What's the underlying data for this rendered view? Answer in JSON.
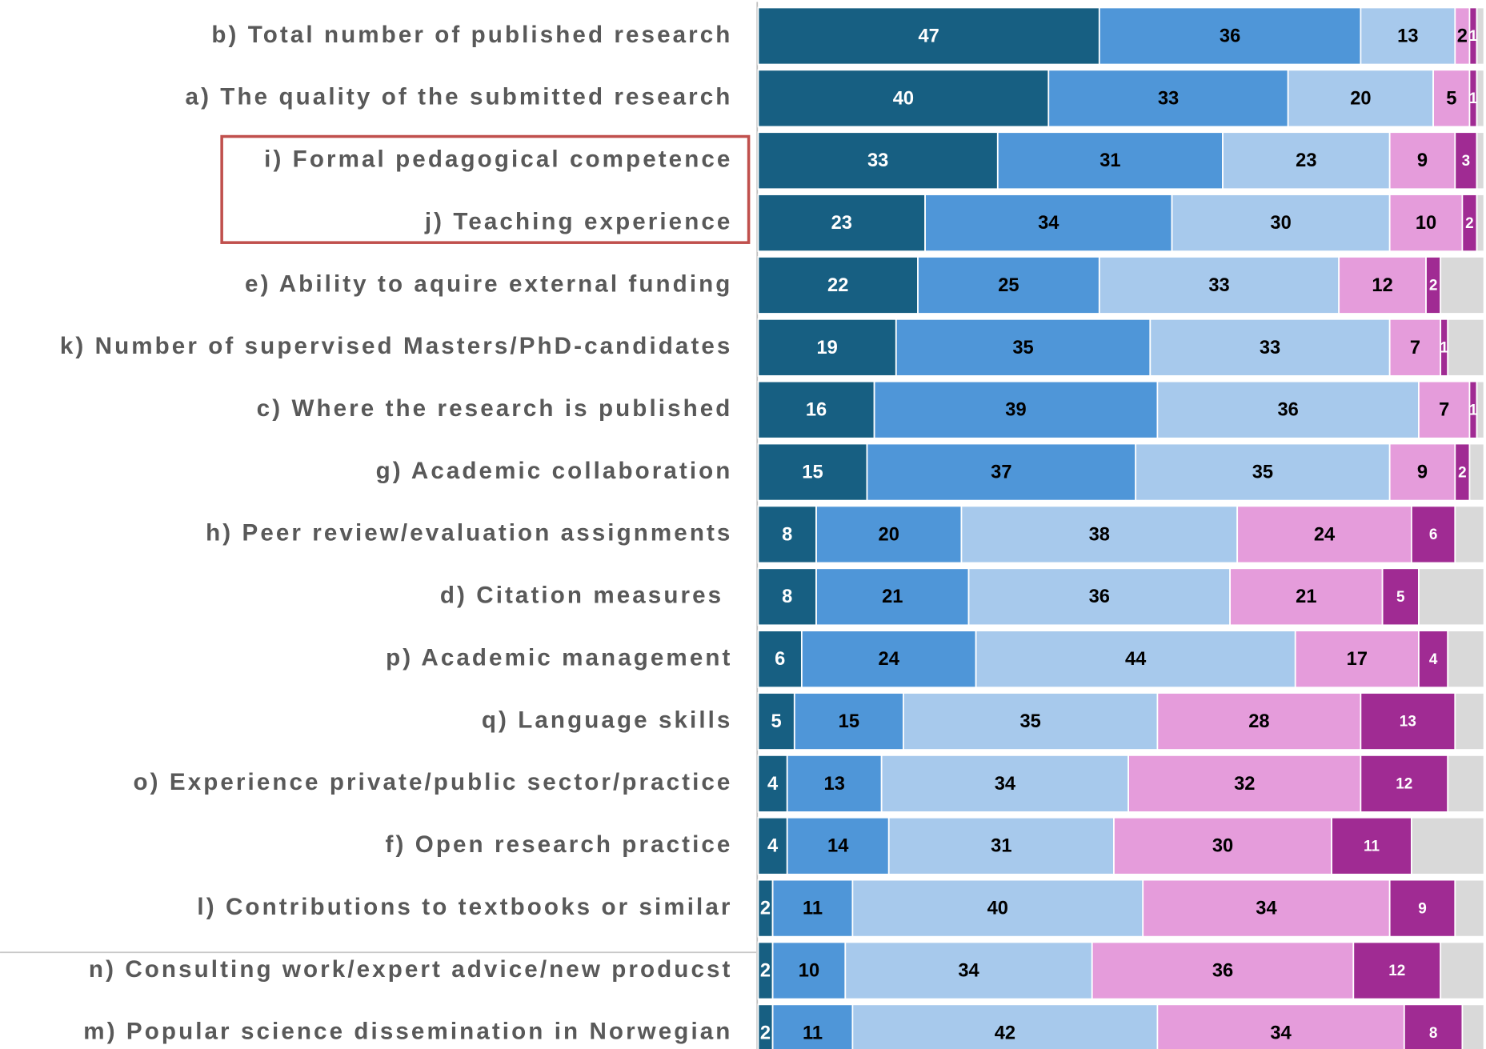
{
  "chart_data": {
    "type": "stacked-bar-horizontal",
    "categories": [
      "b) Total number of published research",
      "a) The quality of the submitted research",
      "i) Formal pedagogical competence",
      "j) Teaching experience",
      "e) Ability to aquire external funding",
      "k) Number of supervised Masters/PhD-candidates",
      "c) Where the research is published",
      "g) Academic collaboration",
      "h) Peer review/evaluation assignments",
      "d) Citation measures ",
      "p) Academic management",
      "q) Language skills",
      "o) Experience private/public sector/practice",
      "f) Open research practice",
      "l) Contributions to textbooks or similar",
      "n) Consulting work/expert advice/new producst",
      "m) Popular science dissemination in Norwegian"
    ],
    "series": [
      {
        "color": "#175f82",
        "label_color": "#ffffff",
        "show_labels": true,
        "values": [
          47,
          40,
          33,
          23,
          22,
          19,
          16,
          15,
          8,
          8,
          6,
          5,
          4,
          4,
          2,
          2,
          2
        ]
      },
      {
        "color": "#4f96d8",
        "label_color": "#000000",
        "show_labels": true,
        "values": [
          36,
          33,
          31,
          34,
          25,
          35,
          39,
          37,
          20,
          21,
          24,
          15,
          13,
          14,
          11,
          10,
          11
        ]
      },
      {
        "color": "#a7c9ec",
        "label_color": "#000000",
        "show_labels": true,
        "values": [
          13,
          20,
          23,
          30,
          33,
          33,
          36,
          35,
          38,
          36,
          44,
          35,
          34,
          31,
          40,
          34,
          42
        ]
      },
      {
        "color": "#e59cdb",
        "label_color": "#000000",
        "show_labels": true,
        "values": [
          2,
          5,
          9,
          10,
          12,
          7,
          7,
          9,
          24,
          21,
          17,
          28,
          32,
          30,
          34,
          36,
          34
        ]
      },
      {
        "color": "#a02b93",
        "label_color": "#ffffff",
        "show_labels": true,
        "values": [
          1,
          1,
          3,
          2,
          2,
          1,
          1,
          2,
          6,
          5,
          4,
          13,
          12,
          11,
          9,
          12,
          8
        ]
      },
      {
        "color": "#d9d9d9",
        "show_labels": false,
        "values": [
          1,
          1,
          1,
          1,
          6,
          5,
          1,
          2,
          4,
          9,
          5,
          4,
          5,
          10,
          4,
          6,
          3
        ]
      }
    ],
    "xlim": [
      0,
      100
    ]
  }
}
